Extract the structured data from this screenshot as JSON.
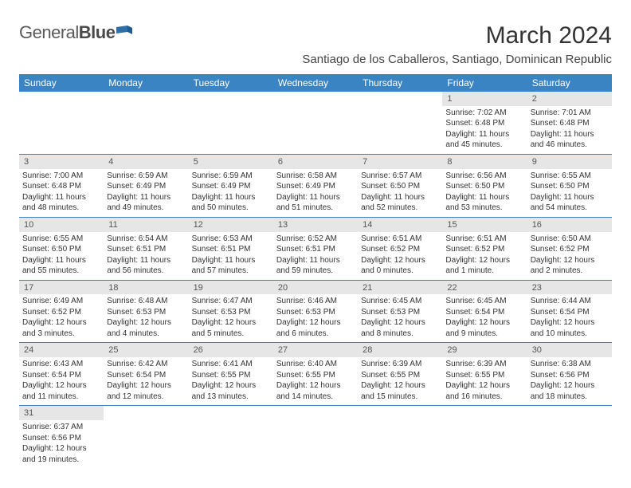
{
  "logo": {
    "text1": "General",
    "text2": "Blue",
    "icon_colors": [
      "#2f6fa8",
      "#2f6fa8"
    ]
  },
  "title": "March 2024",
  "location": "Santiago de los Caballeros, Santiago, Dominican Republic",
  "header_bg": "#3b84c4",
  "header_fg": "#ffffff",
  "daynum_bg": "#e6e6e6",
  "border_color": "#3b84c4",
  "weekdays": [
    "Sunday",
    "Monday",
    "Tuesday",
    "Wednesday",
    "Thursday",
    "Friday",
    "Saturday"
  ],
  "weeks": [
    [
      null,
      null,
      null,
      null,
      null,
      {
        "n": "1",
        "sr": "Sunrise: 7:02 AM",
        "ss": "Sunset: 6:48 PM",
        "dl1": "Daylight: 11 hours",
        "dl2": "and 45 minutes."
      },
      {
        "n": "2",
        "sr": "Sunrise: 7:01 AM",
        "ss": "Sunset: 6:48 PM",
        "dl1": "Daylight: 11 hours",
        "dl2": "and 46 minutes."
      }
    ],
    [
      {
        "n": "3",
        "sr": "Sunrise: 7:00 AM",
        "ss": "Sunset: 6:48 PM",
        "dl1": "Daylight: 11 hours",
        "dl2": "and 48 minutes."
      },
      {
        "n": "4",
        "sr": "Sunrise: 6:59 AM",
        "ss": "Sunset: 6:49 PM",
        "dl1": "Daylight: 11 hours",
        "dl2": "and 49 minutes."
      },
      {
        "n": "5",
        "sr": "Sunrise: 6:59 AM",
        "ss": "Sunset: 6:49 PM",
        "dl1": "Daylight: 11 hours",
        "dl2": "and 50 minutes."
      },
      {
        "n": "6",
        "sr": "Sunrise: 6:58 AM",
        "ss": "Sunset: 6:49 PM",
        "dl1": "Daylight: 11 hours",
        "dl2": "and 51 minutes."
      },
      {
        "n": "7",
        "sr": "Sunrise: 6:57 AM",
        "ss": "Sunset: 6:50 PM",
        "dl1": "Daylight: 11 hours",
        "dl2": "and 52 minutes."
      },
      {
        "n": "8",
        "sr": "Sunrise: 6:56 AM",
        "ss": "Sunset: 6:50 PM",
        "dl1": "Daylight: 11 hours",
        "dl2": "and 53 minutes."
      },
      {
        "n": "9",
        "sr": "Sunrise: 6:55 AM",
        "ss": "Sunset: 6:50 PM",
        "dl1": "Daylight: 11 hours",
        "dl2": "and 54 minutes."
      }
    ],
    [
      {
        "n": "10",
        "sr": "Sunrise: 6:55 AM",
        "ss": "Sunset: 6:50 PM",
        "dl1": "Daylight: 11 hours",
        "dl2": "and 55 minutes."
      },
      {
        "n": "11",
        "sr": "Sunrise: 6:54 AM",
        "ss": "Sunset: 6:51 PM",
        "dl1": "Daylight: 11 hours",
        "dl2": "and 56 minutes."
      },
      {
        "n": "12",
        "sr": "Sunrise: 6:53 AM",
        "ss": "Sunset: 6:51 PM",
        "dl1": "Daylight: 11 hours",
        "dl2": "and 57 minutes."
      },
      {
        "n": "13",
        "sr": "Sunrise: 6:52 AM",
        "ss": "Sunset: 6:51 PM",
        "dl1": "Daylight: 11 hours",
        "dl2": "and 59 minutes."
      },
      {
        "n": "14",
        "sr": "Sunrise: 6:51 AM",
        "ss": "Sunset: 6:52 PM",
        "dl1": "Daylight: 12 hours",
        "dl2": "and 0 minutes."
      },
      {
        "n": "15",
        "sr": "Sunrise: 6:51 AM",
        "ss": "Sunset: 6:52 PM",
        "dl1": "Daylight: 12 hours",
        "dl2": "and 1 minute."
      },
      {
        "n": "16",
        "sr": "Sunrise: 6:50 AM",
        "ss": "Sunset: 6:52 PM",
        "dl1": "Daylight: 12 hours",
        "dl2": "and 2 minutes."
      }
    ],
    [
      {
        "n": "17",
        "sr": "Sunrise: 6:49 AM",
        "ss": "Sunset: 6:52 PM",
        "dl1": "Daylight: 12 hours",
        "dl2": "and 3 minutes."
      },
      {
        "n": "18",
        "sr": "Sunrise: 6:48 AM",
        "ss": "Sunset: 6:53 PM",
        "dl1": "Daylight: 12 hours",
        "dl2": "and 4 minutes."
      },
      {
        "n": "19",
        "sr": "Sunrise: 6:47 AM",
        "ss": "Sunset: 6:53 PM",
        "dl1": "Daylight: 12 hours",
        "dl2": "and 5 minutes."
      },
      {
        "n": "20",
        "sr": "Sunrise: 6:46 AM",
        "ss": "Sunset: 6:53 PM",
        "dl1": "Daylight: 12 hours",
        "dl2": "and 6 minutes."
      },
      {
        "n": "21",
        "sr": "Sunrise: 6:45 AM",
        "ss": "Sunset: 6:53 PM",
        "dl1": "Daylight: 12 hours",
        "dl2": "and 8 minutes."
      },
      {
        "n": "22",
        "sr": "Sunrise: 6:45 AM",
        "ss": "Sunset: 6:54 PM",
        "dl1": "Daylight: 12 hours",
        "dl2": "and 9 minutes."
      },
      {
        "n": "23",
        "sr": "Sunrise: 6:44 AM",
        "ss": "Sunset: 6:54 PM",
        "dl1": "Daylight: 12 hours",
        "dl2": "and 10 minutes."
      }
    ],
    [
      {
        "n": "24",
        "sr": "Sunrise: 6:43 AM",
        "ss": "Sunset: 6:54 PM",
        "dl1": "Daylight: 12 hours",
        "dl2": "and 11 minutes."
      },
      {
        "n": "25",
        "sr": "Sunrise: 6:42 AM",
        "ss": "Sunset: 6:54 PM",
        "dl1": "Daylight: 12 hours",
        "dl2": "and 12 minutes."
      },
      {
        "n": "26",
        "sr": "Sunrise: 6:41 AM",
        "ss": "Sunset: 6:55 PM",
        "dl1": "Daylight: 12 hours",
        "dl2": "and 13 minutes."
      },
      {
        "n": "27",
        "sr": "Sunrise: 6:40 AM",
        "ss": "Sunset: 6:55 PM",
        "dl1": "Daylight: 12 hours",
        "dl2": "and 14 minutes."
      },
      {
        "n": "28",
        "sr": "Sunrise: 6:39 AM",
        "ss": "Sunset: 6:55 PM",
        "dl1": "Daylight: 12 hours",
        "dl2": "and 15 minutes."
      },
      {
        "n": "29",
        "sr": "Sunrise: 6:39 AM",
        "ss": "Sunset: 6:55 PM",
        "dl1": "Daylight: 12 hours",
        "dl2": "and 16 minutes."
      },
      {
        "n": "30",
        "sr": "Sunrise: 6:38 AM",
        "ss": "Sunset: 6:56 PM",
        "dl1": "Daylight: 12 hours",
        "dl2": "and 18 minutes."
      }
    ],
    [
      {
        "n": "31",
        "sr": "Sunrise: 6:37 AM",
        "ss": "Sunset: 6:56 PM",
        "dl1": "Daylight: 12 hours",
        "dl2": "and 19 minutes."
      },
      null,
      null,
      null,
      null,
      null,
      null
    ]
  ]
}
